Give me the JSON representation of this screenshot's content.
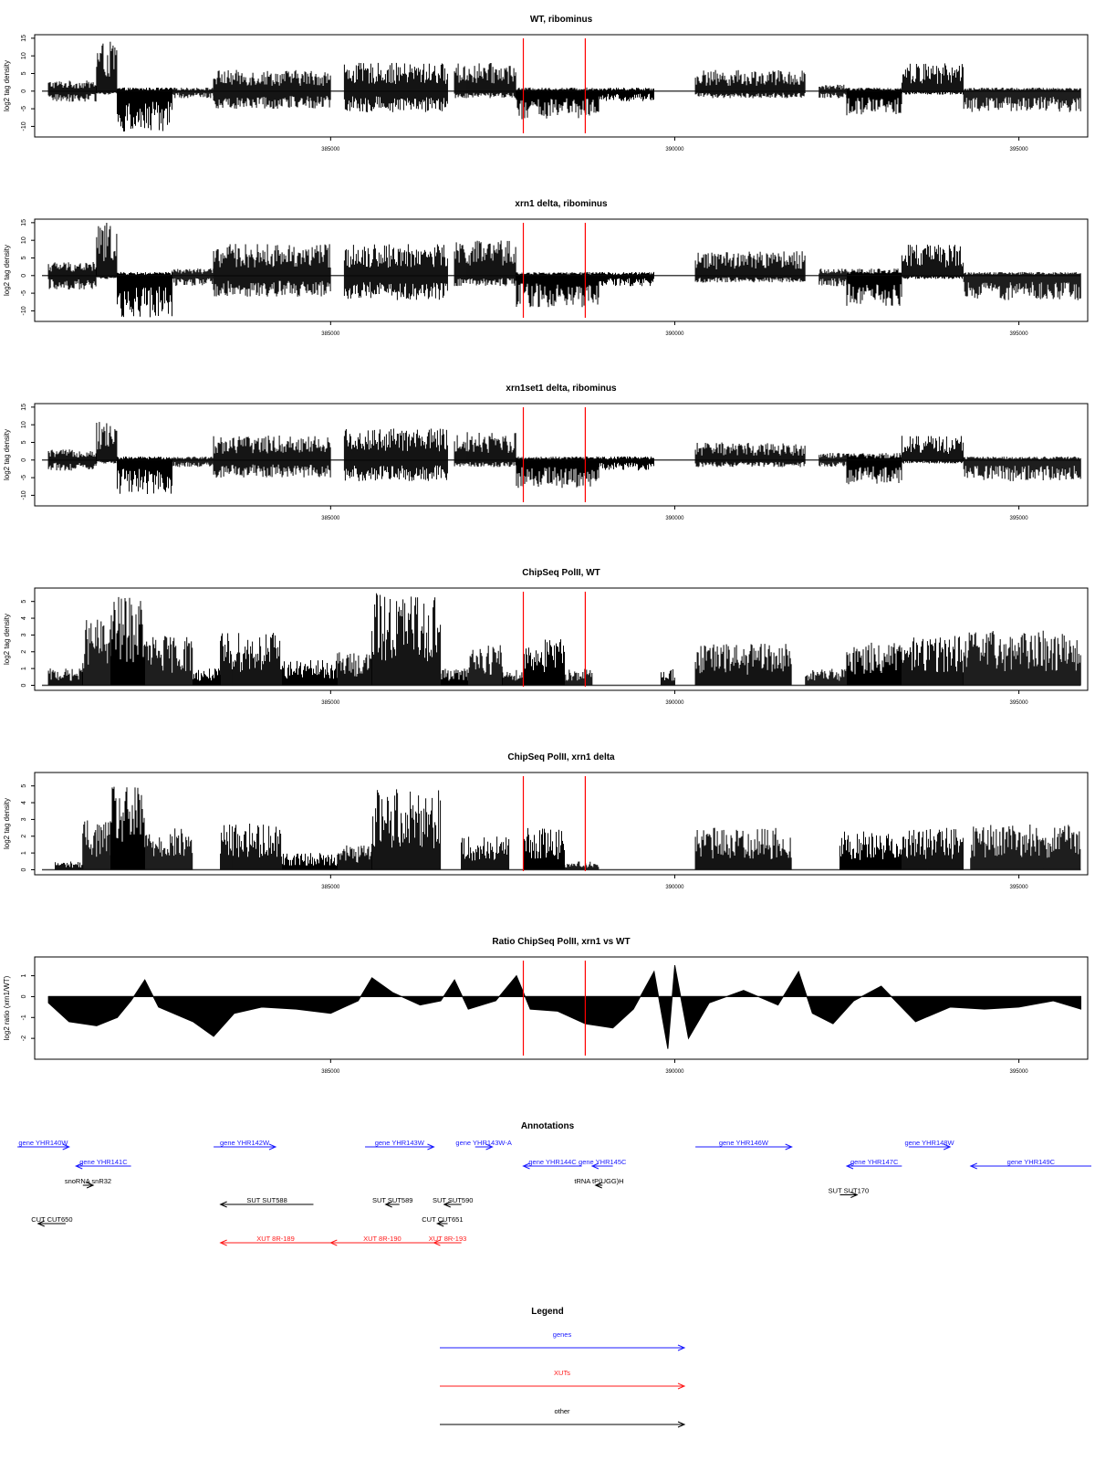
{
  "annotations_title": "Annotations",
  "legend_title": "Legend",
  "legend": [
    {
      "label": "genes",
      "color": "#1a1aff"
    },
    {
      "label": "XUTs",
      "color": "#ff1a1a"
    },
    {
      "label": "other",
      "color": "#000000"
    }
  ],
  "annotations": [
    {
      "label": "gene YHR140W",
      "color": "#1a1aff",
      "start": 380450,
      "end": 381200,
      "strand": "+",
      "row": 1
    },
    {
      "label": "gene YHR141C",
      "color": "#1a1aff",
      "start": 381300,
      "end": 382100,
      "strand": "-",
      "row": 2
    },
    {
      "label": "snoRNA snR32",
      "color": "#000000",
      "start": 381400,
      "end": 381550,
      "strand": "+",
      "row": 3
    },
    {
      "label": "gene YHR142W",
      "color": "#1a1aff",
      "start": 383300,
      "end": 384200,
      "strand": "+",
      "row": 1
    },
    {
      "label": "gene YHR143W",
      "color": "#1a1aff",
      "start": 385500,
      "end": 386500,
      "strand": "+",
      "row": 1
    },
    {
      "label": "gene YHR143W-A",
      "color": "#1a1aff",
      "start": 387100,
      "end": 387350,
      "strand": "+",
      "row": 1
    },
    {
      "label": "gene YHR144C",
      "color": "#1a1aff",
      "start": 387800,
      "end": 388650,
      "strand": "-",
      "row": 2
    },
    {
      "label": "gene YHR145C",
      "color": "#1a1aff",
      "start": 388800,
      "end": 389100,
      "strand": "-",
      "row": 2
    },
    {
      "label": "tRNA tP(UGG)H",
      "color": "#000000",
      "start": 388850,
      "end": 388950,
      "strand": "-",
      "row": 3
    },
    {
      "label": "gene YHR146W",
      "color": "#1a1aff",
      "start": 390300,
      "end": 391700,
      "strand": "+",
      "row": 1
    },
    {
      "label": "gene YHR147C",
      "color": "#1a1aff",
      "start": 392500,
      "end": 393300,
      "strand": "-",
      "row": 2
    },
    {
      "label": "gene YHR148W",
      "color": "#1a1aff",
      "start": 393400,
      "end": 394000,
      "strand": "+",
      "row": 1
    },
    {
      "label": "gene YHR149C",
      "color": "#1a1aff",
      "start": 394300,
      "end": 396300,
      "strand": "-",
      "row": 2
    },
    {
      "label": "SUT SUT588",
      "color": "#000000",
      "start": 383400,
      "end": 384750,
      "strand": "-",
      "row": 4
    },
    {
      "label": "SUT SUT589",
      "color": "#000000",
      "start": 385800,
      "end": 386000,
      "strand": "-",
      "row": 4
    },
    {
      "label": "SUT SUT590",
      "color": "#000000",
      "start": 386650,
      "end": 386900,
      "strand": "-",
      "row": 4
    },
    {
      "label": "SUT SUT170",
      "color": "#000000",
      "start": 392400,
      "end": 392650,
      "strand": "+",
      "row": 3.5
    },
    {
      "label": "CUT CUT650",
      "color": "#000000",
      "start": 380750,
      "end": 381150,
      "strand": "-",
      "row": 5
    },
    {
      "label": "CUT CUT651",
      "color": "#000000",
      "start": 386550,
      "end": 386700,
      "strand": "-",
      "row": 5
    },
    {
      "label": "XUT 8R-189",
      "color": "#ff1a1a",
      "start": 383400,
      "end": 385000,
      "strand": "-",
      "row": 6
    },
    {
      "label": "XUT 8R-190",
      "color": "#ff1a1a",
      "start": 385000,
      "end": 386500,
      "strand": "-",
      "row": 6
    },
    {
      "label": "XUT 8R-193",
      "color": "#ff1a1a",
      "start": 386500,
      "end": 386900,
      "strand": "-",
      "row": 6
    }
  ],
  "chart_data": [
    {
      "type": "bar",
      "title": "WT, ribominus",
      "ylabel": "log2 tag density",
      "ylim": [
        -13,
        16
      ],
      "yticks": [
        -10,
        -5,
        0,
        5,
        10,
        15
      ],
      "xlim": [
        380700,
        396000
      ],
      "xticks": [
        385000,
        390000,
        395000
      ],
      "marker_lines": [
        387800,
        388700
      ],
      "marker_color": "#ff0000",
      "segments": [
        {
          "start": 380900,
          "end": 381600,
          "pos": 3,
          "neg": -3
        },
        {
          "start": 381600,
          "end": 381900,
          "pos": 14,
          "neg": -1
        },
        {
          "start": 381900,
          "end": 382700,
          "pos": 1,
          "neg": -12
        },
        {
          "start": 382700,
          "end": 383300,
          "pos": 1,
          "neg": -2
        },
        {
          "start": 383300,
          "end": 385000,
          "pos": 6,
          "neg": -5
        },
        {
          "start": 385200,
          "end": 386700,
          "pos": 8,
          "neg": -6
        },
        {
          "start": 386800,
          "end": 387700,
          "pos": 8,
          "neg": -2
        },
        {
          "start": 387700,
          "end": 388900,
          "pos": 1,
          "neg": -8
        },
        {
          "start": 388900,
          "end": 389700,
          "pos": 1,
          "neg": -3
        },
        {
          "start": 390300,
          "end": 391900,
          "pos": 6,
          "neg": -2
        },
        {
          "start": 392100,
          "end": 392500,
          "pos": 2,
          "neg": -2
        },
        {
          "start": 392500,
          "end": 393300,
          "pos": 1,
          "neg": -7
        },
        {
          "start": 393300,
          "end": 394200,
          "pos": 8,
          "neg": -1
        },
        {
          "start": 394200,
          "end": 395900,
          "pos": 1,
          "neg": -6
        }
      ]
    },
    {
      "type": "bar",
      "title": "xrn1 delta, ribominus",
      "ylabel": "log2 tag density",
      "ylim": [
        -13,
        16
      ],
      "yticks": [
        -10,
        -5,
        0,
        5,
        10,
        15
      ],
      "xlim": [
        380700,
        396000
      ],
      "xticks": [
        385000,
        390000,
        395000
      ],
      "marker_lines": [
        387800,
        388700
      ],
      "marker_color": "#ff0000",
      "segments": [
        {
          "start": 380900,
          "end": 381600,
          "pos": 4,
          "neg": -4
        },
        {
          "start": 381600,
          "end": 381900,
          "pos": 15,
          "neg": -1
        },
        {
          "start": 381900,
          "end": 382700,
          "pos": 1,
          "neg": -12
        },
        {
          "start": 382700,
          "end": 383300,
          "pos": 2,
          "neg": -3
        },
        {
          "start": 383300,
          "end": 385000,
          "pos": 9,
          "neg": -6
        },
        {
          "start": 385200,
          "end": 386700,
          "pos": 9,
          "neg": -7
        },
        {
          "start": 386800,
          "end": 387700,
          "pos": 10,
          "neg": -3
        },
        {
          "start": 387700,
          "end": 388900,
          "pos": 1,
          "neg": -9
        },
        {
          "start": 388900,
          "end": 389700,
          "pos": 1,
          "neg": -3
        },
        {
          "start": 390300,
          "end": 391900,
          "pos": 7,
          "neg": -2
        },
        {
          "start": 392100,
          "end": 392500,
          "pos": 2,
          "neg": -3
        },
        {
          "start": 392500,
          "end": 393300,
          "pos": 2,
          "neg": -9
        },
        {
          "start": 393300,
          "end": 394200,
          "pos": 9,
          "neg": -1
        },
        {
          "start": 394200,
          "end": 395900,
          "pos": 1,
          "neg": -7
        }
      ]
    },
    {
      "type": "bar",
      "title": "xrn1set1 delta, ribominus",
      "ylabel": "log2 tag density",
      "ylim": [
        -13,
        16
      ],
      "yticks": [
        -10,
        -5,
        0,
        5,
        10,
        15
      ],
      "xlim": [
        380700,
        396000
      ],
      "xticks": [
        385000,
        390000,
        395000
      ],
      "marker_lines": [
        387800,
        388700
      ],
      "marker_color": "#ff0000",
      "segments": [
        {
          "start": 380900,
          "end": 381600,
          "pos": 3,
          "neg": -3
        },
        {
          "start": 381600,
          "end": 381900,
          "pos": 11,
          "neg": -1
        },
        {
          "start": 381900,
          "end": 382700,
          "pos": 1,
          "neg": -10
        },
        {
          "start": 382700,
          "end": 383300,
          "pos": 1,
          "neg": -2
        },
        {
          "start": 383300,
          "end": 385000,
          "pos": 7,
          "neg": -5
        },
        {
          "start": 385200,
          "end": 386700,
          "pos": 9,
          "neg": -6
        },
        {
          "start": 386800,
          "end": 387700,
          "pos": 8,
          "neg": -2
        },
        {
          "start": 387700,
          "end": 388900,
          "pos": 1,
          "neg": -8
        },
        {
          "start": 388900,
          "end": 389700,
          "pos": 1,
          "neg": -3
        },
        {
          "start": 390300,
          "end": 391900,
          "pos": 5,
          "neg": -2
        },
        {
          "start": 392100,
          "end": 392500,
          "pos": 2,
          "neg": -2
        },
        {
          "start": 392500,
          "end": 393300,
          "pos": 2,
          "neg": -7
        },
        {
          "start": 393300,
          "end": 394200,
          "pos": 7,
          "neg": -1
        },
        {
          "start": 394200,
          "end": 395900,
          "pos": 1,
          "neg": -6
        }
      ]
    },
    {
      "type": "bar",
      "title": "ChipSeq PolII, WT",
      "ylabel": "log2 tag density",
      "ylim": [
        -0.3,
        5.8
      ],
      "yticks": [
        0,
        1,
        2,
        3,
        4,
        5
      ],
      "xlim": [
        380700,
        396000
      ],
      "xticks": [
        385000,
        390000,
        395000
      ],
      "marker_lines": [
        387800,
        388700
      ],
      "marker_color": "#ff0000",
      "segments": [
        {
          "start": 380900,
          "end": 381400,
          "pos": 1,
          "neg": 0
        },
        {
          "start": 381400,
          "end": 381800,
          "pos": 4,
          "neg": 0
        },
        {
          "start": 381800,
          "end": 382300,
          "pos": 5.3,
          "neg": 0
        },
        {
          "start": 382300,
          "end": 383000,
          "pos": 3,
          "neg": 0
        },
        {
          "start": 383000,
          "end": 383400,
          "pos": 1,
          "neg": 0
        },
        {
          "start": 383400,
          "end": 384300,
          "pos": 3.2,
          "neg": 0
        },
        {
          "start": 384300,
          "end": 385100,
          "pos": 1.5,
          "neg": 0
        },
        {
          "start": 385100,
          "end": 385600,
          "pos": 2,
          "neg": 0
        },
        {
          "start": 385600,
          "end": 386600,
          "pos": 5.5,
          "neg": 0
        },
        {
          "start": 386600,
          "end": 387000,
          "pos": 1,
          "neg": 0
        },
        {
          "start": 387000,
          "end": 387500,
          "pos": 2.5,
          "neg": 0
        },
        {
          "start": 387500,
          "end": 387800,
          "pos": 1,
          "neg": 0
        },
        {
          "start": 387800,
          "end": 388400,
          "pos": 2.8,
          "neg": 0
        },
        {
          "start": 388400,
          "end": 388800,
          "pos": 1,
          "neg": 0
        },
        {
          "start": 389800,
          "end": 390000,
          "pos": 1,
          "neg": 0
        },
        {
          "start": 390300,
          "end": 391700,
          "pos": 2.5,
          "neg": 0
        },
        {
          "start": 391900,
          "end": 392500,
          "pos": 1,
          "neg": 0
        },
        {
          "start": 392500,
          "end": 393300,
          "pos": 2.6,
          "neg": 0
        },
        {
          "start": 393300,
          "end": 394200,
          "pos": 3,
          "neg": 0
        },
        {
          "start": 394200,
          "end": 395900,
          "pos": 3.3,
          "neg": 0
        }
      ]
    },
    {
      "type": "bar",
      "title": "ChipSeq PolII, xrn1 delta",
      "ylabel": "log2 tag density",
      "ylim": [
        -0.3,
        5.8
      ],
      "yticks": [
        0,
        1,
        2,
        3,
        4,
        5
      ],
      "xlim": [
        380700,
        396000
      ],
      "xticks": [
        385000,
        390000,
        395000
      ],
      "marker_lines": [
        387800,
        388700
      ],
      "marker_color": "#ff0000",
      "segments": [
        {
          "start": 381000,
          "end": 381400,
          "pos": 0.5,
          "neg": 0
        },
        {
          "start": 381400,
          "end": 381800,
          "pos": 3,
          "neg": 0
        },
        {
          "start": 381800,
          "end": 382300,
          "pos": 5,
          "neg": 0
        },
        {
          "start": 382300,
          "end": 383000,
          "pos": 2.5,
          "neg": 0
        },
        {
          "start": 383400,
          "end": 384300,
          "pos": 2.8,
          "neg": 0
        },
        {
          "start": 384300,
          "end": 385100,
          "pos": 1,
          "neg": 0
        },
        {
          "start": 385100,
          "end": 385600,
          "pos": 1.5,
          "neg": 0
        },
        {
          "start": 385600,
          "end": 386600,
          "pos": 5,
          "neg": 0
        },
        {
          "start": 386900,
          "end": 387600,
          "pos": 2,
          "neg": 0
        },
        {
          "start": 387800,
          "end": 388400,
          "pos": 2.5,
          "neg": 0
        },
        {
          "start": 388400,
          "end": 388900,
          "pos": 0.5,
          "neg": 0
        },
        {
          "start": 390300,
          "end": 391700,
          "pos": 2.5,
          "neg": 0
        },
        {
          "start": 392400,
          "end": 393300,
          "pos": 2.3,
          "neg": 0
        },
        {
          "start": 393300,
          "end": 394200,
          "pos": 2.5,
          "neg": 0
        },
        {
          "start": 394300,
          "end": 395900,
          "pos": 2.7,
          "neg": 0
        }
      ]
    },
    {
      "type": "area",
      "title": "Ratio ChipSeq PolII, xrn1 vs WT",
      "ylabel": "log2 ratio (xrn1/WT)",
      "ylim": [
        -3,
        1.9
      ],
      "yticks": [
        -2,
        -1,
        0,
        1
      ],
      "xlim": [
        380700,
        396000
      ],
      "xticks": [
        385000,
        390000,
        395000
      ],
      "marker_lines": [
        387800,
        388700
      ],
      "marker_color": "#ff0000",
      "x": [
        380900,
        381200,
        381600,
        381900,
        382100,
        382300,
        382500,
        383000,
        383300,
        383600,
        384000,
        384500,
        385000,
        385400,
        385600,
        385900,
        386300,
        386600,
        386800,
        387000,
        387400,
        387700,
        387900,
        388300,
        388700,
        389100,
        389400,
        389700,
        389900,
        390000,
        390200,
        390500,
        391000,
        391500,
        391800,
        392000,
        392300,
        392600,
        393000,
        393500,
        394000,
        394500,
        395000,
        395500,
        395900
      ],
      "y": [
        -0.3,
        -1.2,
        -1.4,
        -1,
        -0.2,
        0.8,
        -0.5,
        -1.2,
        -1.9,
        -0.8,
        -0.5,
        -0.6,
        -0.8,
        -0.2,
        0.9,
        0.2,
        -0.4,
        -0.2,
        0.8,
        -0.6,
        -0.2,
        1.0,
        -0.6,
        -0.7,
        -1.3,
        -1.5,
        -0.6,
        1.2,
        -2.5,
        1.5,
        -2.0,
        -0.3,
        0.3,
        -0.4,
        1.2,
        -0.8,
        -1.3,
        -0.2,
        0.5,
        -1.2,
        -0.5,
        -0.6,
        -0.5,
        -0.2,
        -0.6
      ]
    }
  ]
}
